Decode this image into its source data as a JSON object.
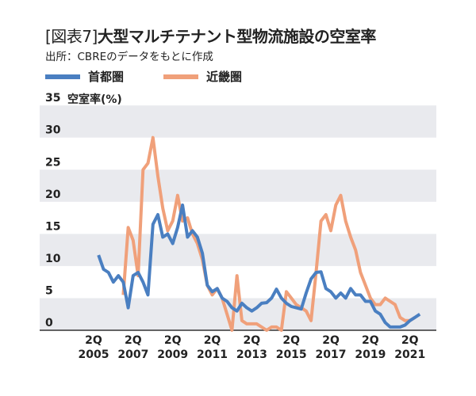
{
  "title_prefix": "[図表7]",
  "title": "大型マルチテナント型物流施設の空室率",
  "subtitle": "出所：CBREのデータをもとに作成",
  "chart_data": {
    "type": "line",
    "ylabel": "空室率(%)",
    "ylim": [
      0,
      35
    ],
    "yticks": [
      "0",
      "5",
      "10",
      "15",
      "20",
      "25",
      "30",
      "35"
    ],
    "xticks": [
      {
        "q": "2Q",
        "year": "2005"
      },
      {
        "q": "2Q",
        "year": "2007"
      },
      {
        "q": "2Q",
        "year": "2009"
      },
      {
        "q": "2Q",
        "year": "2011"
      },
      {
        "q": "2Q",
        "year": "2013"
      },
      {
        "q": "2Q",
        "year": "2015"
      },
      {
        "q": "2Q",
        "year": "2017"
      },
      {
        "q": "2Q",
        "year": "2019"
      },
      {
        "q": "2Q",
        "year": "2021"
      }
    ],
    "grid": "alternating horizontal bands",
    "legend": "top-left",
    "categories": [
      "2Q2005",
      "3Q2005",
      "4Q2005",
      "1Q2006",
      "2Q2006",
      "3Q2006",
      "4Q2006",
      "1Q2007",
      "2Q2007",
      "3Q2007",
      "4Q2007",
      "1Q2008",
      "2Q2008",
      "3Q2008",
      "4Q2008",
      "1Q2009",
      "2Q2009",
      "3Q2009",
      "4Q2009",
      "1Q2010",
      "2Q2010",
      "3Q2010",
      "4Q2010",
      "1Q2011",
      "2Q2011",
      "3Q2011",
      "4Q2011",
      "1Q2012",
      "2Q2012",
      "3Q2012",
      "4Q2012",
      "1Q2013",
      "2Q2013",
      "3Q2013",
      "4Q2013",
      "1Q2014",
      "2Q2014",
      "3Q2014",
      "4Q2014",
      "1Q2015",
      "2Q2015",
      "3Q2015",
      "4Q2015",
      "1Q2016",
      "2Q2016",
      "3Q2016",
      "4Q2016",
      "1Q2017",
      "2Q2017",
      "3Q2017",
      "4Q2017",
      "1Q2018",
      "2Q2018",
      "3Q2018",
      "4Q2018",
      "1Q2019",
      "2Q2019",
      "3Q2019",
      "4Q2019",
      "1Q2020",
      "2Q2020",
      "3Q2020",
      "4Q2020",
      "1Q2021",
      "2Q2021",
      "3Q2021",
      "4Q2021"
    ],
    "series": [
      {
        "name": "首都圏",
        "color": "#4a7fc1",
        "values": [
          null,
          11.7,
          9.5,
          9,
          7.5,
          8.5,
          7.5,
          3.5,
          8.5,
          9,
          7.5,
          5.5,
          16.5,
          18,
          14.5,
          15,
          13.5,
          16,
          19.5,
          14.5,
          15.5,
          14.5,
          12,
          7,
          6,
          6.5,
          5,
          4.5,
          3.5,
          3,
          4.2,
          3.5,
          3,
          3.5,
          4.2,
          4.3,
          5,
          6.4,
          5,
          4.2,
          3.7,
          3.5,
          3.3,
          5.8,
          8,
          9,
          9.1,
          6.5,
          6,
          5,
          5.8,
          5,
          6.5,
          5.5,
          5.5,
          4.5,
          4.5,
          3,
          2.5,
          1.2,
          0.5,
          0.5,
          0.5,
          0.8,
          1.5,
          2,
          2.5
        ]
      },
      {
        "name": "近畿圏",
        "color": "#f0a07a",
        "values": [
          null,
          null,
          null,
          null,
          null,
          null,
          5.5,
          16,
          14,
          8.5,
          25,
          26,
          30,
          24,
          19,
          15.5,
          17,
          21,
          17,
          17.5,
          15,
          13.5,
          11,
          7,
          5.5,
          6.5,
          5,
          2.5,
          0,
          8.5,
          1.5,
          1,
          1,
          1,
          0.5,
          0,
          0.5,
          0.5,
          0,
          6,
          5,
          4,
          3.5,
          3,
          1.5,
          9,
          17,
          18,
          15.5,
          19.5,
          21,
          17,
          14.5,
          12.5,
          9,
          7,
          5,
          4,
          4,
          5,
          4.5,
          4,
          2,
          1.5,
          1.5,
          2,
          null
        ]
      }
    ]
  }
}
